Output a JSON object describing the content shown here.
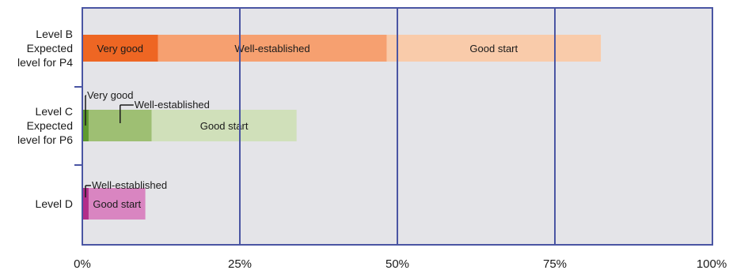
{
  "chart_data": {
    "type": "bar",
    "orientation": "horizontal",
    "stacked": true,
    "xlim": [
      0,
      100
    ],
    "x_ticks": [
      "0%",
      "25%",
      "50%",
      "75%",
      "100%"
    ],
    "grid": true,
    "categories": [
      {
        "label_lines": [
          "Level B",
          "Expected",
          "level for P4"
        ],
        "segments": [
          {
            "name": "Very good",
            "value": 12,
            "color": "#ee6623"
          },
          {
            "name": "Well-established",
            "value": 36.3,
            "color": "#f6a070"
          },
          {
            "name": "Good start",
            "value": 34,
            "color": "#f9cbaa"
          }
        ]
      },
      {
        "label_lines": [
          "Level C",
          "Expected",
          "level for P6"
        ],
        "segments": [
          {
            "name": "Very good",
            "value": 1,
            "color": "#5e9a2f"
          },
          {
            "name": "Well-established",
            "value": 10,
            "color": "#9ebf73"
          },
          {
            "name": "Good start",
            "value": 23,
            "color": "#d0e0ba"
          }
        ]
      },
      {
        "label_lines": [
          "Level D"
        ],
        "segments": [
          {
            "name": "Well-established",
            "value": 1,
            "color": "#b22d8a"
          },
          {
            "name": "Good start",
            "value": 9,
            "color": "#d985c1"
          }
        ]
      }
    ],
    "colors": {
      "plot_background": "#e4e4e8",
      "frame": "#4a55a3"
    }
  }
}
